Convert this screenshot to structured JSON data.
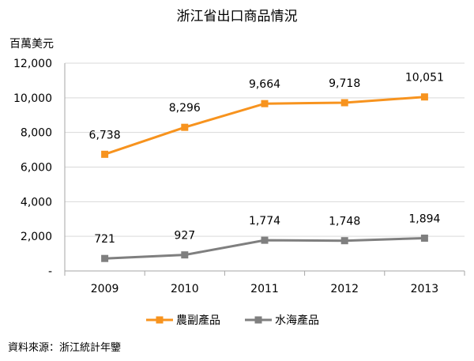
{
  "chart_data": {
    "type": "line",
    "title": "浙江省出口商品情況",
    "ylabel": "百萬美元",
    "xlabel": "",
    "categories": [
      "2009",
      "2010",
      "2011",
      "2012",
      "2013"
    ],
    "ylim": [
      0,
      12000
    ],
    "yticks": [
      0,
      2000,
      4000,
      6000,
      8000,
      10000,
      12000
    ],
    "ytick_labels": [
      "-",
      "2,000",
      "4,000",
      "6,000",
      "8,000",
      "10,000",
      "12,000"
    ],
    "grid": true,
    "legend_position": "bottom",
    "series": [
      {
        "name": "農副產品",
        "color": "#F7931E",
        "marker": "square",
        "values": [
          6738,
          8296,
          9664,
          9718,
          10051
        ],
        "labels": [
          "6,738",
          "8,296",
          "9,664",
          "9,718",
          "10,051"
        ]
      },
      {
        "name": "水海產品",
        "color": "#7F7F7F",
        "marker": "square",
        "values": [
          721,
          927,
          1774,
          1748,
          1894
        ],
        "labels": [
          "721",
          "927",
          "1,774",
          "1,748",
          "1,894"
        ]
      }
    ]
  },
  "source_note": "資料來源：浙江統計年鑒"
}
